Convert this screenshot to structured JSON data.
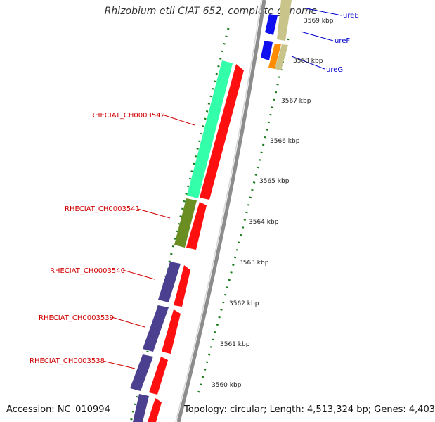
{
  "header": {
    "title": "Rhizobium etli CIAT 652, complete genome"
  },
  "footer": {
    "accession": "Accession: NC_010994",
    "summary": "Topology: circular; Length: 4,513,324 bp; Genes: 4,403"
  },
  "ticks": [
    "3569 kbp",
    "3568 kbp",
    "3567 kbp",
    "3566 kbp",
    "3565 kbp",
    "3564 kbp",
    "3563 kbp",
    "3562 kbp",
    "3561 kbp",
    "3560 kbp"
  ],
  "genes_left": [
    "RHECIAT_CH0003542",
    "RHECIAT_CH0003541",
    "RHECIAT_CH0003540",
    "RHECIAT_CH0003539",
    "RHECIAT_CH0003538"
  ],
  "genes_right": [
    "ureE",
    "ureF",
    "ureG"
  ],
  "colors": {
    "cog_green": "#33ffaa",
    "cog_olive": "#6b8e23",
    "cog_purple": "#4b3f8f",
    "cog_blue": "#1010ee",
    "cog_tan": "#c8c48a",
    "cog_orange": "#ff8c00",
    "cds_red": "#ff1010",
    "backbone": "#8c8c8c",
    "tick_green": "#1a7a1a",
    "label_red": "#d00000",
    "label_blue": "#0000cc"
  }
}
